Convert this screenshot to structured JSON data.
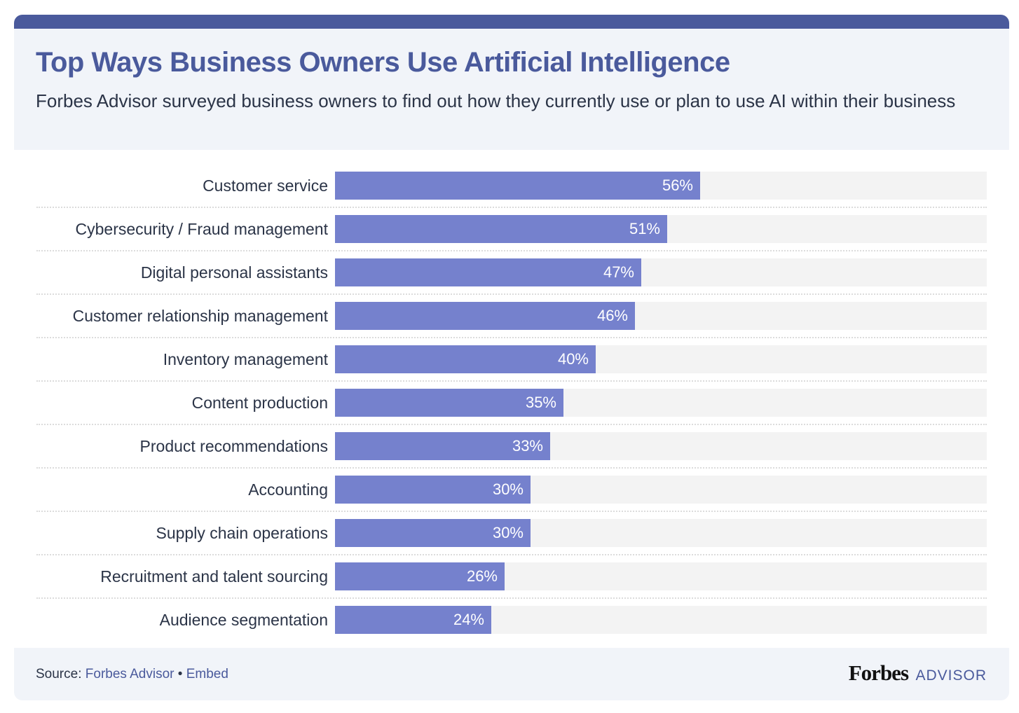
{
  "header": {
    "title": "Top Ways Business Owners Use Artificial Intelligence",
    "subtitle": "Forbes Advisor surveyed business owners to find out how they currently use or plan to use AI within their business"
  },
  "colors": {
    "accent": "#4a5a9c",
    "bar": "#7581cd",
    "track": "#f3f3f3",
    "panel": "#f1f4f9",
    "text": "#2b3447"
  },
  "chart_data": {
    "type": "bar",
    "orientation": "horizontal",
    "title": "Top Ways Business Owners Use Artificial Intelligence",
    "subtitle": "Forbes Advisor surveyed business owners to find out how they currently use or plan to use AI within their business",
    "xlabel": "",
    "ylabel": "",
    "xlim": [
      0,
      100
    ],
    "grid": false,
    "legend": null,
    "categories": [
      "Customer service",
      "Cybersecurity / Fraud management",
      "Digital personal assistants",
      "Customer relationship management",
      "Inventory management",
      "Content production",
      "Product recommendations",
      "Accounting",
      "Supply chain operations",
      "Recruitment and talent sourcing",
      "Audience segmentation"
    ],
    "values": [
      56,
      51,
      47,
      46,
      40,
      35,
      33,
      30,
      30,
      26,
      24
    ],
    "value_labels": [
      "56%",
      "51%",
      "47%",
      "46%",
      "40%",
      "35%",
      "33%",
      "30%",
      "30%",
      "26%",
      "24%"
    ],
    "unit": "%"
  },
  "footer": {
    "source_label": "Source:",
    "source_link": "Forbes Advisor",
    "separator": "•",
    "embed_link": "Embed",
    "brand_forbes": "Forbes",
    "brand_advisor": "ADVISOR"
  }
}
